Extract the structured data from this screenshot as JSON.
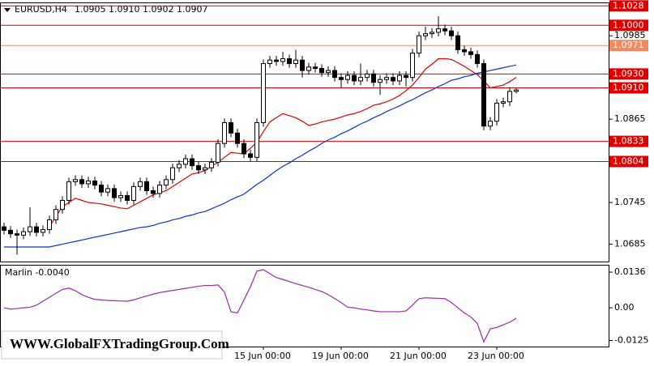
{
  "header": {
    "symbol": "EURUSD,H4",
    "ohlc": "1.0905 1.0910 1.0902 1.0907"
  },
  "watermark": "WWW.GlobalFXTradingGroup.Com",
  "chart_data": [
    {
      "type": "candlestick",
      "categories": [
        null,
        null,
        null,
        null,
        null,
        null,
        null,
        null,
        null,
        null,
        null,
        null,
        null,
        null,
        null,
        null,
        null,
        null,
        null,
        null,
        null,
        null,
        null,
        null,
        null,
        null,
        null,
        null,
        null,
        null,
        null,
        null,
        null,
        null,
        null,
        null,
        null,
        null,
        null,
        null,
        "15 Jun 00:00",
        null,
        null,
        null,
        null,
        null,
        null,
        null,
        null,
        null,
        null,
        null,
        "19 Jun 00:00",
        null,
        null,
        null,
        null,
        null,
        null,
        null,
        null,
        null,
        null,
        null,
        "21 Jun 00:00",
        null,
        null,
        null,
        null,
        null,
        null,
        null,
        null,
        null,
        null,
        null,
        "23 Jun 00:00",
        null,
        null,
        null
      ],
      "open": [
        1.071,
        1.0705,
        1.07,
        1.0698,
        1.0703,
        1.071,
        1.0702,
        1.0706,
        1.072,
        1.0735,
        1.0748,
        1.0775,
        1.0778,
        1.0772,
        1.0776,
        1.077,
        1.076,
        1.0765,
        1.0752,
        1.0755,
        1.0748,
        1.0768,
        1.0775,
        1.0762,
        1.0758,
        1.077,
        1.0778,
        1.0795,
        1.08,
        1.0808,
        1.0798,
        1.0792,
        1.0795,
        1.0803,
        1.083,
        1.086,
        1.0845,
        1.083,
        1.0815,
        1.081,
        1.086,
        1.0945,
        1.095,
        1.0948,
        1.0952,
        1.0945,
        1.095,
        1.0935,
        1.094,
        1.0938,
        1.0932,
        1.0935,
        1.0925,
        1.0922,
        1.0928,
        1.092,
        1.0925,
        1.093,
        1.0918,
        1.0922,
        1.0925,
        1.092,
        1.0928,
        1.0925,
        1.096,
        1.0985,
        1.0988,
        1.099,
        1.0995,
        1.0992,
        1.0985,
        1.0965,
        1.0962,
        1.0958,
        1.0945,
        1.0855,
        1.0862,
        1.0888,
        1.089,
        1.0905
      ],
      "high": [
        1.0716,
        1.0711,
        1.0706,
        1.0709,
        1.0738,
        1.0716,
        1.0712,
        1.0726,
        1.0741,
        1.0754,
        1.0781,
        1.0784,
        1.0784,
        1.0782,
        1.0782,
        1.0776,
        1.0771,
        1.0771,
        1.0761,
        1.0761,
        1.0774,
        1.0781,
        1.0781,
        1.0768,
        1.0776,
        1.0784,
        1.0801,
        1.0806,
        1.0814,
        1.0814,
        1.0804,
        1.0801,
        1.0809,
        1.0836,
        1.0866,
        1.0866,
        1.0851,
        1.0836,
        1.0821,
        1.0866,
        1.0951,
        1.0956,
        1.0956,
        1.0962,
        1.0958,
        1.0965,
        1.0956,
        1.0946,
        1.0946,
        1.0944,
        1.0941,
        1.0941,
        1.0931,
        1.0934,
        1.0934,
        1.0945,
        1.0936,
        1.0936,
        1.0928,
        1.0931,
        1.0931,
        1.0934,
        1.0934,
        1.0966,
        1.0991,
        1.0998,
        1.0996,
        1.1013,
        1.1001,
        1.0998,
        1.0991,
        1.0971,
        1.0968,
        1.0964,
        1.0951,
        1.0868,
        1.0894,
        1.0896,
        1.0911,
        1.091
      ],
      "low": [
        1.0699,
        1.0694,
        1.067,
        1.0692,
        1.0697,
        1.0696,
        1.0696,
        1.07,
        1.0714,
        1.0729,
        1.0742,
        1.0769,
        1.0766,
        1.0766,
        1.0764,
        1.0754,
        1.0754,
        1.0746,
        1.0746,
        1.0742,
        1.0742,
        1.0762,
        1.0756,
        1.0752,
        1.0752,
        1.0764,
        1.0772,
        1.0789,
        1.0794,
        1.0792,
        1.0786,
        1.0786,
        1.0789,
        1.0797,
        1.0824,
        1.0839,
        1.0824,
        1.0809,
        1.0804,
        1.0804,
        1.0854,
        1.0939,
        1.0942,
        1.0942,
        1.0939,
        1.0939,
        1.0925,
        1.0929,
        1.0932,
        1.0926,
        1.0926,
        1.0919,
        1.091,
        1.0916,
        1.0914,
        1.0914,
        1.0919,
        1.0912,
        1.09,
        1.0916,
        1.0914,
        1.0914,
        1.0912,
        1.0919,
        1.0954,
        1.0979,
        1.0982,
        1.0984,
        1.0986,
        1.0979,
        1.0959,
        1.0956,
        1.0952,
        1.0939,
        1.0849,
        1.0849,
        1.0856,
        1.0882,
        1.0884,
        1.0902
      ],
      "close": [
        1.0705,
        1.07,
        1.0698,
        1.0703,
        1.071,
        1.0702,
        1.0706,
        1.072,
        1.0735,
        1.0748,
        1.0775,
        1.0778,
        1.0772,
        1.0776,
        1.077,
        1.076,
        1.0765,
        1.0752,
        1.0755,
        1.0748,
        1.0768,
        1.0775,
        1.0762,
        1.0758,
        1.077,
        1.0778,
        1.0795,
        1.08,
        1.0808,
        1.0798,
        1.0792,
        1.0795,
        1.0803,
        1.083,
        1.086,
        1.0845,
        1.083,
        1.0815,
        1.081,
        1.086,
        1.0945,
        1.095,
        1.0948,
        1.0952,
        1.0945,
        1.095,
        1.0935,
        1.094,
        1.0938,
        1.0932,
        1.0935,
        1.0925,
        1.0922,
        1.0928,
        1.092,
        1.0925,
        1.093,
        1.0918,
        1.0922,
        1.0925,
        1.092,
        1.0928,
        1.0925,
        1.096,
        1.0985,
        1.0988,
        1.099,
        1.0995,
        1.0992,
        1.0985,
        1.0965,
        1.0962,
        1.0958,
        1.0945,
        1.0855,
        1.0862,
        1.0888,
        1.089,
        1.0905,
        1.0907
      ],
      "lines": [
        {
          "color": "#e00000",
          "values": [
            null,
            null,
            null,
            null,
            null,
            null,
            null,
            1.071,
            1.0725,
            1.0739,
            1.0745,
            1.0751,
            1.0748,
            1.0745,
            1.0744,
            1.0743,
            1.0741,
            1.0739,
            1.0737,
            1.0736,
            1.0741,
            1.0746,
            1.0751,
            1.0756,
            1.0759,
            1.0762,
            1.0768,
            1.0774,
            1.078,
            1.0786,
            1.0788,
            1.0791,
            1.0797,
            1.0803,
            1.081,
            1.0817,
            1.0816,
            1.0815,
            1.0823,
            1.0832,
            1.0847,
            1.0861,
            1.0867,
            1.0873,
            1.087,
            1.0867,
            1.0862,
            1.0856,
            1.0858,
            1.0861,
            1.0863,
            1.0865,
            1.0868,
            1.0871,
            1.0873,
            1.0876,
            1.088,
            1.0885,
            1.0887,
            1.089,
            1.0894,
            1.0899,
            1.0906,
            1.0914,
            1.0925,
            1.0937,
            1.0944,
            1.0952,
            1.0952,
            1.0951,
            1.0946,
            1.0941,
            1.0935,
            1.0929,
            1.092,
            1.091,
            1.0912,
            1.0914,
            1.0919,
            1.0925
          ]
        },
        {
          "color": "#1030d0",
          "values": [
            1.0681,
            1.0681,
            1.0681,
            1.0681,
            1.0681,
            1.0681,
            1.0681,
            1.0681,
            1.0683,
            1.0685,
            1.0687,
            1.0689,
            1.0691,
            1.0693,
            1.0695,
            1.0697,
            1.0699,
            1.0701,
            1.0703,
            1.0705,
            1.0707,
            1.0709,
            1.071,
            1.0712,
            1.0715,
            1.0717,
            1.072,
            1.0722,
            1.0725,
            1.0727,
            1.073,
            1.0732,
            1.0736,
            1.074,
            1.0744,
            1.0749,
            1.0753,
            1.0757,
            1.0764,
            1.0771,
            1.0777,
            1.0784,
            1.0791,
            1.0797,
            1.0802,
            1.0808,
            1.0813,
            1.0819,
            1.0824,
            1.083,
            1.0835,
            1.0839,
            1.0844,
            1.0848,
            1.0853,
            1.0858,
            1.0862,
            1.0867,
            1.0871,
            1.0876,
            1.088,
            1.0884,
            1.0889,
            1.0893,
            1.0898,
            1.0903,
            1.0907,
            1.0912,
            1.0916,
            1.0921,
            1.0923,
            1.0926,
            1.0928,
            1.0931,
            1.0933,
            1.0935,
            1.0937,
            1.0939,
            1.0941,
            1.0943
          ]
        }
      ],
      "levels": [
        {
          "value": 1.1028,
          "label": "1.1028",
          "color": "#e00000"
        },
        {
          "value": 1.1,
          "label": "1.1000",
          "color": "#e00000"
        },
        {
          "value": 1.0971,
          "label": "1.0971",
          "color": "#f08860"
        },
        {
          "value": 1.093,
          "label": "1.0930",
          "color": "#e00000"
        },
        {
          "value": 1.091,
          "label": "1.0910",
          "color": "#e00000"
        },
        {
          "value": 1.0833,
          "label": "1.0833",
          "color": "#e00000"
        },
        {
          "value": 1.0804,
          "label": "1.0804",
          "color": "#e00000"
        }
      ],
      "ylim": [
        1.066,
        1.1033
      ],
      "yticks": [
        1.0985,
        1.0865,
        1.0745,
        1.0685
      ]
    },
    {
      "type": "line",
      "label": "Marlin -0.0040",
      "color": "#9a2aa8",
      "values": [
        0.0,
        -0.0005,
        -0.0003,
        0.0,
        0.0002,
        0.001,
        0.0025,
        0.004,
        0.0055,
        0.007,
        0.0075,
        0.0065,
        0.005,
        0.004,
        0.0032,
        0.003,
        0.0028,
        0.0027,
        0.0026,
        0.0025,
        0.003,
        0.0038,
        0.0045,
        0.0052,
        0.0058,
        0.0062,
        0.0066,
        0.007,
        0.0074,
        0.0078,
        0.0082,
        0.0085,
        0.0085,
        0.0087,
        0.006,
        -0.0015,
        -0.002,
        0.003,
        0.008,
        0.014,
        0.0145,
        0.013,
        0.0115,
        0.0108,
        0.01,
        0.0092,
        0.0085,
        0.0078,
        0.007,
        0.0062,
        0.005,
        0.0035,
        0.002,
        0.0002,
        0.0,
        -0.0005,
        -0.0008,
        -0.0012,
        -0.0015,
        -0.0015,
        -0.0015,
        -0.0015,
        -0.0012,
        0.001,
        0.0035,
        0.0038,
        0.0037,
        0.0036,
        0.0035,
        0.002,
        0.0,
        -0.002,
        -0.0035,
        -0.006,
        -0.013,
        -0.008,
        -0.0075,
        -0.0065,
        -0.0055,
        -0.004
      ],
      "ylim": [
        -0.0148,
        0.0164
      ],
      "yticks": [
        0.0136,
        {
          "value": 0,
          "label": "0.00"
        },
        -0.0125
      ]
    }
  ]
}
